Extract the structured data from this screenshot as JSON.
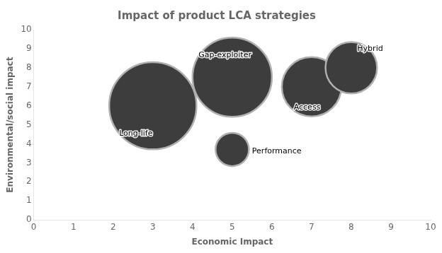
{
  "chart_data": {
    "type": "bubble",
    "title": "Impact of product LCA strategies",
    "xlabel": "Economic Impact",
    "ylabel": "Environmental/social impact",
    "x": [
      3.0,
      5.0,
      5.0,
      7.0,
      8.0
    ],
    "values": [
      6.0,
      7.5,
      3.7,
      7.0,
      8.0
    ],
    "sizes": [
      1.1,
      1.0,
      0.42,
      0.75,
      0.65
    ],
    "annotations": [
      {
        "text": "Long-life",
        "x": 2.15,
        "y": 4.55
      },
      {
        "text": "Gap-exploiter",
        "x": 4.15,
        "y": 8.65
      },
      {
        "text": "Performance",
        "x": 5.5,
        "y": 3.6
      },
      {
        "text": "Access",
        "x": 6.55,
        "y": 5.9
      },
      {
        "text": "Hybrid",
        "x": 8.15,
        "y": 9.0
      }
    ],
    "color": "#3d3d3d",
    "xlim": [
      0,
      10
    ],
    "ylim": [
      0,
      10
    ],
    "xticks": [
      0,
      1,
      2,
      3,
      4,
      5,
      6,
      7,
      8,
      9,
      10
    ],
    "yticks": [
      0,
      1,
      2,
      3,
      4,
      5,
      6,
      7,
      8,
      9,
      10
    ],
    "grid": false
  }
}
